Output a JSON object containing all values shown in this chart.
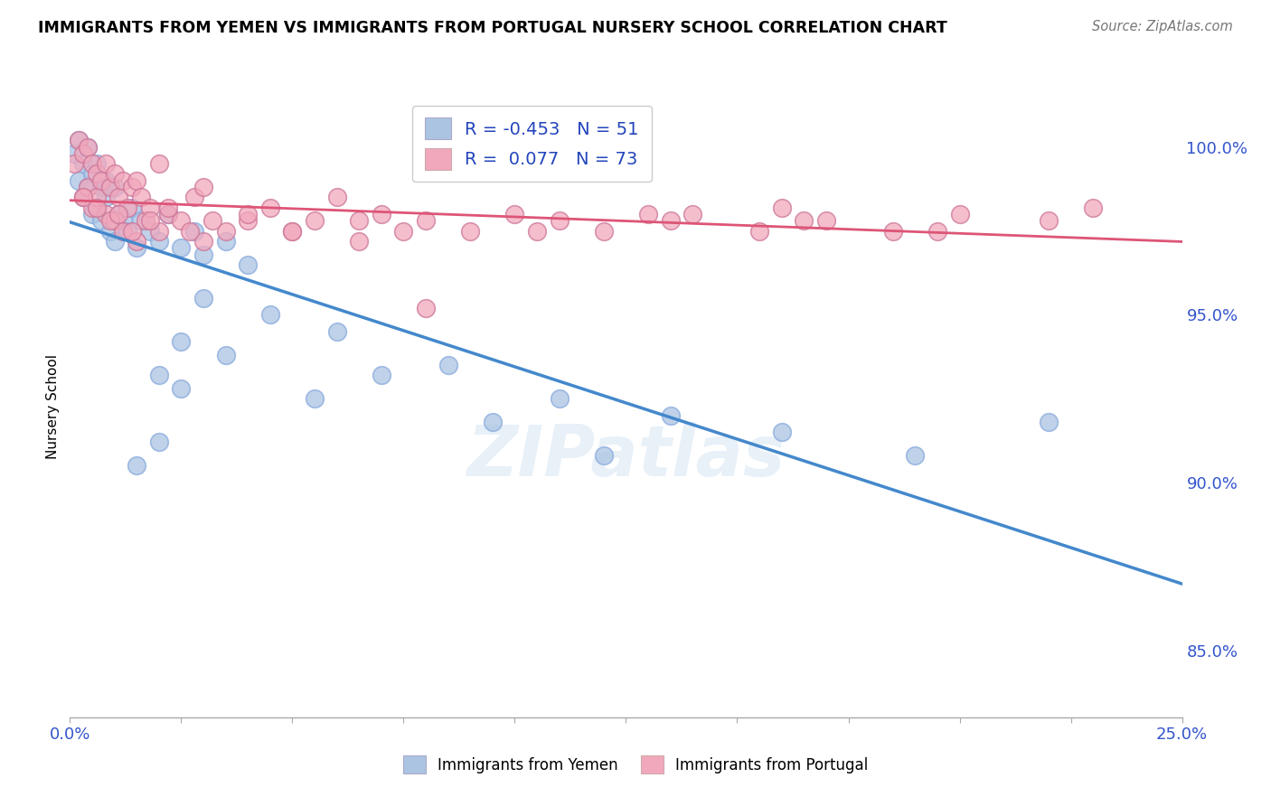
{
  "title": "IMMIGRANTS FROM YEMEN VS IMMIGRANTS FROM PORTUGAL NURSERY SCHOOL CORRELATION CHART",
  "source": "Source: ZipAtlas.com",
  "ylabel": "Nursery School",
  "xlim": [
    0.0,
    25.0
  ],
  "ylim": [
    83.0,
    101.5
  ],
  "yticks": [
    85.0,
    90.0,
    95.0,
    100.0
  ],
  "ytick_labels": [
    "85.0%",
    "90.0%",
    "95.0%",
    "100.0%"
  ],
  "xtick_positions": [
    0.0,
    2.5,
    5.0,
    7.5,
    10.0,
    12.5,
    15.0,
    17.5,
    20.0,
    22.5,
    25.0
  ],
  "xtick_labels": [
    "0.0%",
    "",
    "",
    "",
    "",
    "",
    "",
    "",
    "",
    "",
    "25.0%"
  ],
  "blue_color": "#aac4e2",
  "pink_color": "#f2a8bc",
  "blue_line_color": "#4488cc",
  "pink_line_color": "#dd5577",
  "blue_R": -0.453,
  "blue_N": 51,
  "pink_R": 0.077,
  "pink_N": 73,
  "watermark": "ZIPatlas",
  "blue_scatter_x": [
    0.1,
    0.2,
    0.2,
    0.3,
    0.3,
    0.4,
    0.4,
    0.5,
    0.5,
    0.6,
    0.6,
    0.7,
    0.7,
    0.8,
    0.8,
    0.9,
    1.0,
    1.0,
    1.1,
    1.2,
    1.3,
    1.4,
    1.5,
    1.6,
    1.8,
    2.0,
    2.2,
    2.5,
    2.8,
    3.0,
    3.5,
    4.0,
    2.0,
    2.5,
    3.0,
    4.5,
    6.0,
    8.5,
    11.0,
    13.5,
    16.0,
    19.0,
    22.0,
    1.5,
    2.0,
    2.5,
    3.5,
    5.5,
    7.0,
    9.5,
    12.0
  ],
  "blue_scatter_y": [
    99.8,
    100.2,
    99.0,
    98.5,
    99.5,
    98.8,
    100.0,
    99.2,
    98.0,
    99.5,
    98.2,
    98.8,
    97.8,
    99.0,
    98.5,
    97.5,
    98.8,
    97.2,
    98.0,
    97.8,
    97.5,
    98.2,
    97.0,
    97.8,
    97.5,
    97.2,
    98.0,
    97.0,
    97.5,
    96.8,
    97.2,
    96.5,
    93.2,
    94.2,
    95.5,
    95.0,
    94.5,
    93.5,
    92.5,
    92.0,
    91.5,
    90.8,
    91.8,
    90.5,
    91.2,
    92.8,
    93.8,
    92.5,
    93.2,
    91.8,
    90.8
  ],
  "pink_scatter_x": [
    0.1,
    0.2,
    0.3,
    0.3,
    0.4,
    0.4,
    0.5,
    0.5,
    0.6,
    0.6,
    0.7,
    0.8,
    0.8,
    0.9,
    1.0,
    1.0,
    1.1,
    1.2,
    1.2,
    1.3,
    1.4,
    1.5,
    1.5,
    1.6,
    1.7,
    1.8,
    2.0,
    2.0,
    2.2,
    2.5,
    2.8,
    3.0,
    3.0,
    3.5,
    4.0,
    4.5,
    5.0,
    5.5,
    6.0,
    6.5,
    7.0,
    7.5,
    8.0,
    9.0,
    10.0,
    11.0,
    12.0,
    13.5,
    14.0,
    15.5,
    16.0,
    17.0,
    18.5,
    20.0,
    22.0,
    0.3,
    0.6,
    0.9,
    1.1,
    1.4,
    1.8,
    2.2,
    2.7,
    3.2,
    4.0,
    5.0,
    6.5,
    8.0,
    10.5,
    13.0,
    16.5,
    19.5,
    23.0
  ],
  "pink_scatter_y": [
    99.5,
    100.2,
    99.8,
    98.5,
    100.0,
    98.8,
    99.5,
    98.2,
    99.2,
    98.5,
    99.0,
    99.5,
    98.0,
    98.8,
    99.2,
    97.8,
    98.5,
    99.0,
    97.5,
    98.2,
    98.8,
    99.0,
    97.2,
    98.5,
    97.8,
    98.2,
    99.5,
    97.5,
    98.0,
    97.8,
    98.5,
    97.2,
    98.8,
    97.5,
    97.8,
    98.2,
    97.5,
    97.8,
    98.5,
    97.2,
    98.0,
    97.5,
    97.8,
    97.5,
    98.0,
    97.8,
    97.5,
    97.8,
    98.0,
    97.5,
    98.2,
    97.8,
    97.5,
    98.0,
    97.8,
    98.5,
    98.2,
    97.8,
    98.0,
    97.5,
    97.8,
    98.2,
    97.5,
    97.8,
    98.0,
    97.5,
    97.8,
    95.2,
    97.5,
    98.0,
    97.8,
    97.5,
    98.2
  ]
}
